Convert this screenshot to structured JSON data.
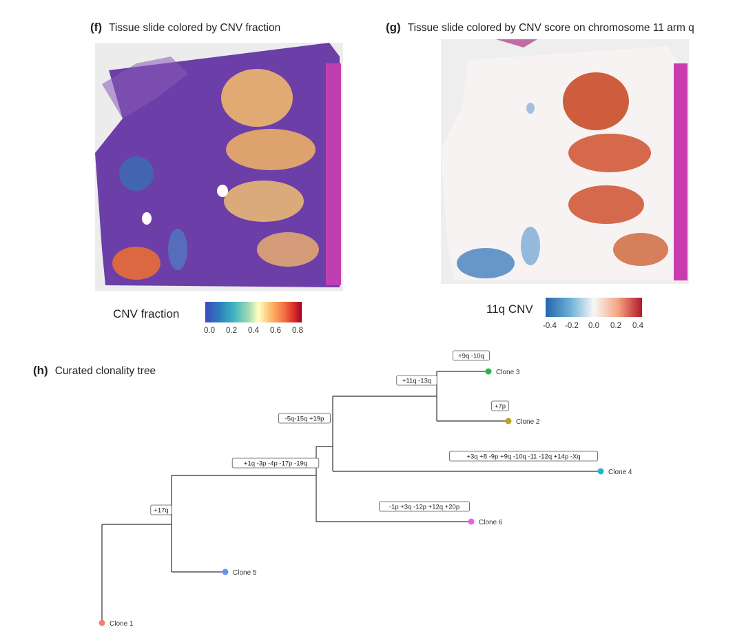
{
  "panel_f": {
    "letter": "(f)",
    "title": "Tissue slide colored by CNV fraction",
    "colorbar_label": "CNV fraction",
    "colorbar_ticks": [
      "0.0",
      "0.2",
      "0.4",
      "0.6",
      "0.8"
    ],
    "colormap": [
      "#3b4cc0",
      "#2c7fb8",
      "#41b6c4",
      "#a1dab4",
      "#ffffbf",
      "#fdae61",
      "#f46d43",
      "#d73027",
      "#a50026"
    ]
  },
  "panel_g": {
    "letter": "(g)",
    "title": "Tissue slide colored by CNV score on chromosome 11 arm q",
    "colorbar_label": "11q CNV",
    "colorbar_ticks": [
      "-0.4",
      "-0.2",
      "0.0",
      "0.2",
      "0.4"
    ],
    "colormap": [
      "#2166ac",
      "#6baed6",
      "#f7f7f7",
      "#f4a582",
      "#b2182b"
    ]
  },
  "panel_h": {
    "letter": "(h)",
    "title": "Curated clonality tree",
    "clones": [
      {
        "name": "Clone 1",
        "color": "#f08070"
      },
      {
        "name": "Clone 5",
        "color": "#6495ed"
      },
      {
        "name": "Clone 6",
        "color": "#e462e4"
      },
      {
        "name": "Clone 4",
        "color": "#1fb8c3"
      },
      {
        "name": "Clone 2",
        "color": "#b8a21a"
      },
      {
        "name": "Clone 3",
        "color": "#2eb34a"
      }
    ],
    "branch_labels": [
      "+17q",
      "+1q -3p -4p -17p -19q",
      "-1p +3q -12p +12q +20p",
      "-5q-15q +19p",
      "+3q +8 -9p +9q -10q -11 -12q +14p -Xq",
      "+11q -13q",
      "+7p",
      "+9q -10q"
    ]
  }
}
